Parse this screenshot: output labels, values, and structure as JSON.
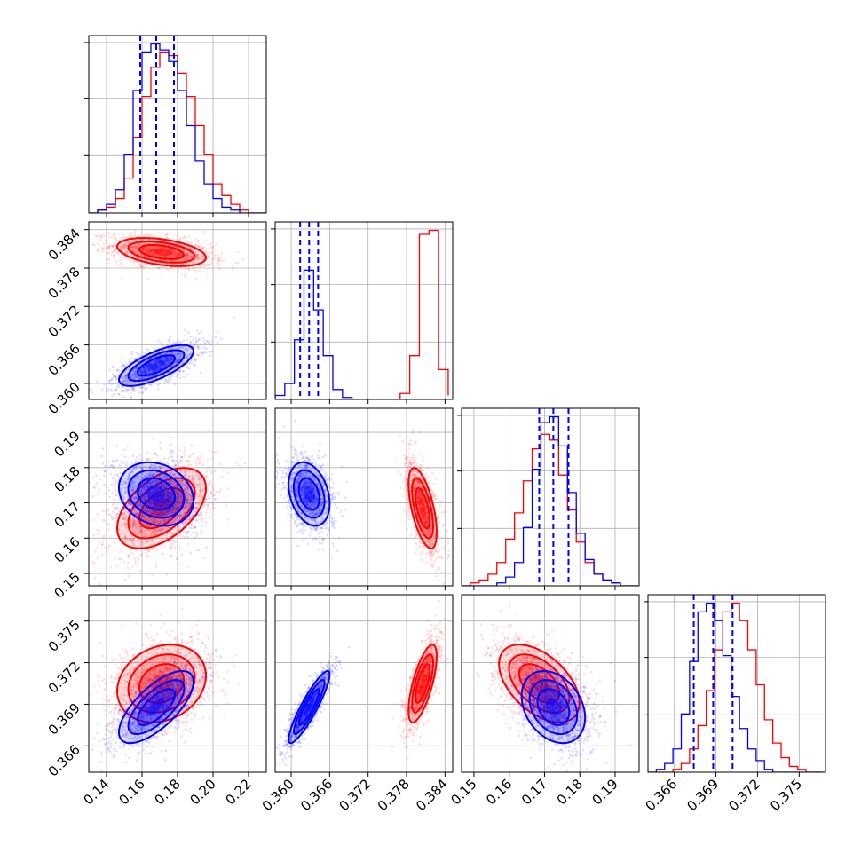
{
  "chart_data": {
    "type": "corner",
    "title": "",
    "grid": true,
    "parameters": [
      {
        "range": [
          0.13,
          0.23
        ],
        "ticks": [
          0.14,
          0.16,
          0.18,
          0.2,
          0.22
        ],
        "tick_labels": [
          "0.14",
          "0.16",
          "0.18",
          "0.20",
          "0.22"
        ]
      },
      {
        "range": [
          0.3575,
          0.3852
        ],
        "ticks": [
          0.36,
          0.366,
          0.372,
          0.378,
          0.384
        ],
        "tick_labels": [
          "0.360",
          "0.366",
          "0.372",
          "0.378",
          "0.384"
        ]
      },
      {
        "range": [
          0.1465,
          0.1968
        ],
        "ticks": [
          0.15,
          0.16,
          0.17,
          0.18,
          0.19
        ],
        "tick_labels": [
          "0.15",
          "0.16",
          "0.17",
          "0.18",
          "0.19"
        ]
      },
      {
        "range": [
          0.3641,
          0.3769
        ],
        "ticks": [
          0.366,
          0.369,
          0.372,
          0.375
        ],
        "tick_labels": [
          "0.366",
          "0.369",
          "0.372",
          "0.375"
        ]
      }
    ],
    "series": [
      {
        "color": "#ff0000",
        "mean": [
          0.171,
          0.3805,
          0.1685,
          0.3705
        ],
        "std": [
          0.0125,
          0.0011,
          0.0057,
          0.0014
        ],
        "correlation": [
          [
            1,
            -0.4,
            0.5,
            0.2
          ],
          [
            -0.4,
            1,
            -0.6,
            0.7
          ],
          [
            0.5,
            -0.6,
            1,
            -0.5
          ],
          [
            0.2,
            0.7,
            -0.5,
            1
          ]
        ]
      },
      {
        "color": "#0000ff",
        "mean": [
          0.168,
          0.3628,
          0.1725,
          0.3688
        ],
        "std": [
          0.0105,
          0.0016,
          0.0045,
          0.0013
        ],
        "correlation": [
          [
            1,
            0.7,
            -0.2,
            0.7
          ],
          [
            0.7,
            1,
            -0.3,
            0.9
          ],
          [
            -0.2,
            -0.3,
            1,
            -0.3
          ],
          [
            0.7,
            0.9,
            -0.3,
            1
          ]
        ],
        "quantiles": [
          [
            0.159,
            0.168,
            0.178
          ],
          [
            0.3614,
            0.3628,
            0.3642
          ],
          [
            0.1685,
            0.1725,
            0.1768
          ],
          [
            0.3674,
            0.3688,
            0.3702
          ]
        ]
      }
    ],
    "diagonal_histograms": [
      {
        "bins": [
          0.13,
          0.135,
          0.14,
          0.145,
          0.15,
          0.155,
          0.16,
          0.165,
          0.17,
          0.175,
          0.18,
          0.185,
          0.19,
          0.195,
          0.2,
          0.205,
          0.21,
          0.215,
          0.22,
          0.225,
          0.23
        ],
        "red": [
          0,
          1,
          2,
          5,
          12,
          26,
          40,
          50,
          55,
          54,
          48,
          40,
          30,
          20,
          10,
          6,
          3,
          1,
          0,
          0
        ],
        "blue": [
          0,
          1,
          3,
          8,
          20,
          42,
          55,
          58,
          56,
          52,
          42,
          30,
          18,
          10,
          5,
          2,
          1,
          0,
          0,
          0
        ]
      },
      {
        "bins": [
          0.3575,
          0.359,
          0.3605,
          0.362,
          0.3635,
          0.365,
          0.3665,
          0.368,
          0.3695,
          0.371,
          0.3725,
          0.374,
          0.3755,
          0.377,
          0.3785,
          0.38,
          0.3815,
          0.383,
          0.3845
        ],
        "red": [
          0,
          0,
          0,
          0,
          0,
          0,
          0,
          0,
          0,
          0,
          0,
          0,
          0,
          3,
          22,
          83,
          85,
          15,
          2
        ],
        "blue": [
          2,
          8,
          30,
          65,
          45,
          22,
          5,
          1,
          0,
          0,
          0,
          0,
          0,
          0,
          0,
          0,
          0,
          0,
          0
        ]
      },
      {
        "bins": [
          0.1465,
          0.149,
          0.1515,
          0.154,
          0.1565,
          0.159,
          0.1615,
          0.164,
          0.1665,
          0.169,
          0.1715,
          0.174,
          0.1765,
          0.179,
          0.1815,
          0.184,
          0.1865,
          0.189,
          0.1915,
          0.194,
          0.1965
        ],
        "red": [
          0,
          1,
          2,
          4,
          8,
          16,
          25,
          36,
          47,
          52,
          50,
          38,
          26,
          15,
          8,
          4,
          2,
          1,
          0,
          0
        ],
        "blue": [
          0,
          0,
          0,
          0,
          1,
          3,
          8,
          20,
          40,
          56,
          58,
          48,
          32,
          18,
          9,
          4,
          2,
          1,
          0,
          0
        ]
      },
      {
        "bins": [
          0.3641,
          0.3647,
          0.3653,
          0.3659,
          0.3665,
          0.3671,
          0.3677,
          0.3683,
          0.3689,
          0.3695,
          0.3701,
          0.3707,
          0.3713,
          0.3719,
          0.3725,
          0.3731,
          0.3737,
          0.3743,
          0.3749,
          0.3755,
          0.3761,
          0.3767
        ],
        "red": [
          0,
          0,
          0,
          1,
          3,
          8,
          16,
          28,
          42,
          55,
          58,
          52,
          42,
          30,
          18,
          10,
          5,
          2,
          1,
          0,
          0
        ],
        "blue": [
          0,
          1,
          3,
          8,
          20,
          38,
          55,
          58,
          52,
          40,
          26,
          15,
          8,
          4,
          1,
          0,
          0,
          0,
          0,
          0,
          0
        ]
      }
    ]
  }
}
